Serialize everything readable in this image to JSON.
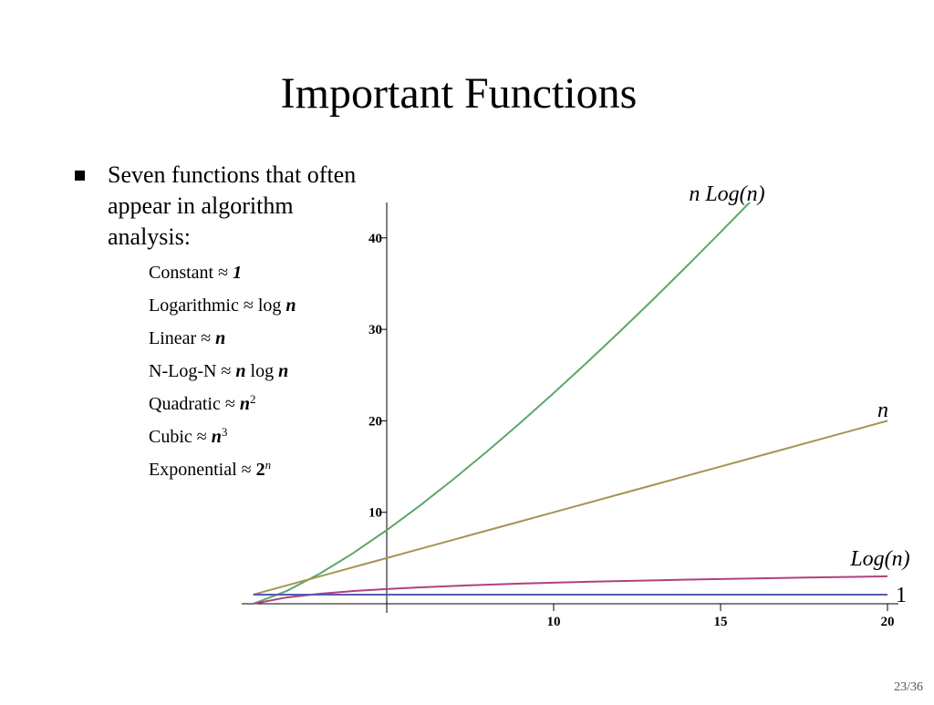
{
  "slide": {
    "title": "Important Functions",
    "bullet": "Seven functions that often appear in algorithm analysis:",
    "items": [
      [
        {
          "text": "Constant ≈ "
        },
        {
          "text": "1",
          "style": "bold-italic"
        }
      ],
      [
        {
          "text": "Logarithmic ≈ log "
        },
        {
          "text": "n",
          "style": "bold-italic"
        }
      ],
      [
        {
          "text": "Linear ≈ "
        },
        {
          "text": "n",
          "style": "bold-italic"
        }
      ],
      [
        {
          "text": "N-Log-N ≈ "
        },
        {
          "text": "n",
          "style": "bold-italic"
        },
        {
          "text": " log "
        },
        {
          "text": "n",
          "style": "bold-italic"
        }
      ],
      [
        {
          "text": "Quadratic ≈ "
        },
        {
          "text": "n",
          "style": "bold-italic"
        },
        {
          "text": "2",
          "style": "sup"
        }
      ],
      [
        {
          "text": "Cubic ≈ "
        },
        {
          "text": "n",
          "style": "bold-italic"
        },
        {
          "text": "3",
          "style": "sup"
        }
      ],
      [
        {
          "text": "Exponential ≈ "
        },
        {
          "text": "2",
          "style": "bold"
        },
        {
          "text": "n",
          "style": "sup-italic"
        }
      ]
    ],
    "page": "23/36"
  },
  "chart_data": {
    "type": "line",
    "x": [
      1,
      2,
      3,
      4,
      5,
      6,
      7,
      8,
      9,
      10,
      11,
      12,
      13,
      14,
      15,
      16,
      17,
      18,
      19,
      20
    ],
    "series": [
      {
        "name": "n Log(n)",
        "color": "#5aa86b",
        "values": [
          0,
          1.39,
          3.3,
          5.55,
          8.05,
          10.75,
          13.62,
          16.64,
          19.78,
          23.03,
          26.38,
          29.82,
          33.34,
          36.95,
          40.62,
          44.36,
          null,
          null,
          null,
          null
        ]
      },
      {
        "name": "n",
        "color": "#a69450",
        "values": [
          1,
          2,
          3,
          4,
          5,
          6,
          7,
          8,
          9,
          10,
          11,
          12,
          13,
          14,
          15,
          16,
          17,
          18,
          19,
          20
        ]
      },
      {
        "name": "Log(n)",
        "color": "#b0427a",
        "values": [
          0,
          0.69,
          1.1,
          1.39,
          1.61,
          1.79,
          1.95,
          2.08,
          2.2,
          2.3,
          2.4,
          2.48,
          2.56,
          2.64,
          2.71,
          2.77,
          2.83,
          2.89,
          2.94,
          3.0
        ]
      },
      {
        "name": "1",
        "color": "#5a5ab0",
        "values": [
          1,
          1,
          1,
          1,
          1,
          1,
          1,
          1,
          1,
          1,
          1,
          1,
          1,
          1,
          1,
          1,
          1,
          1,
          1,
          1
        ]
      }
    ],
    "xlim": [
      0.6,
      20.3
    ],
    "ylim": [
      0,
      44
    ],
    "xticks": [
      10,
      15,
      20
    ],
    "yticks": [
      10,
      20,
      30,
      40
    ],
    "origin": [
      5,
      0
    ]
  }
}
